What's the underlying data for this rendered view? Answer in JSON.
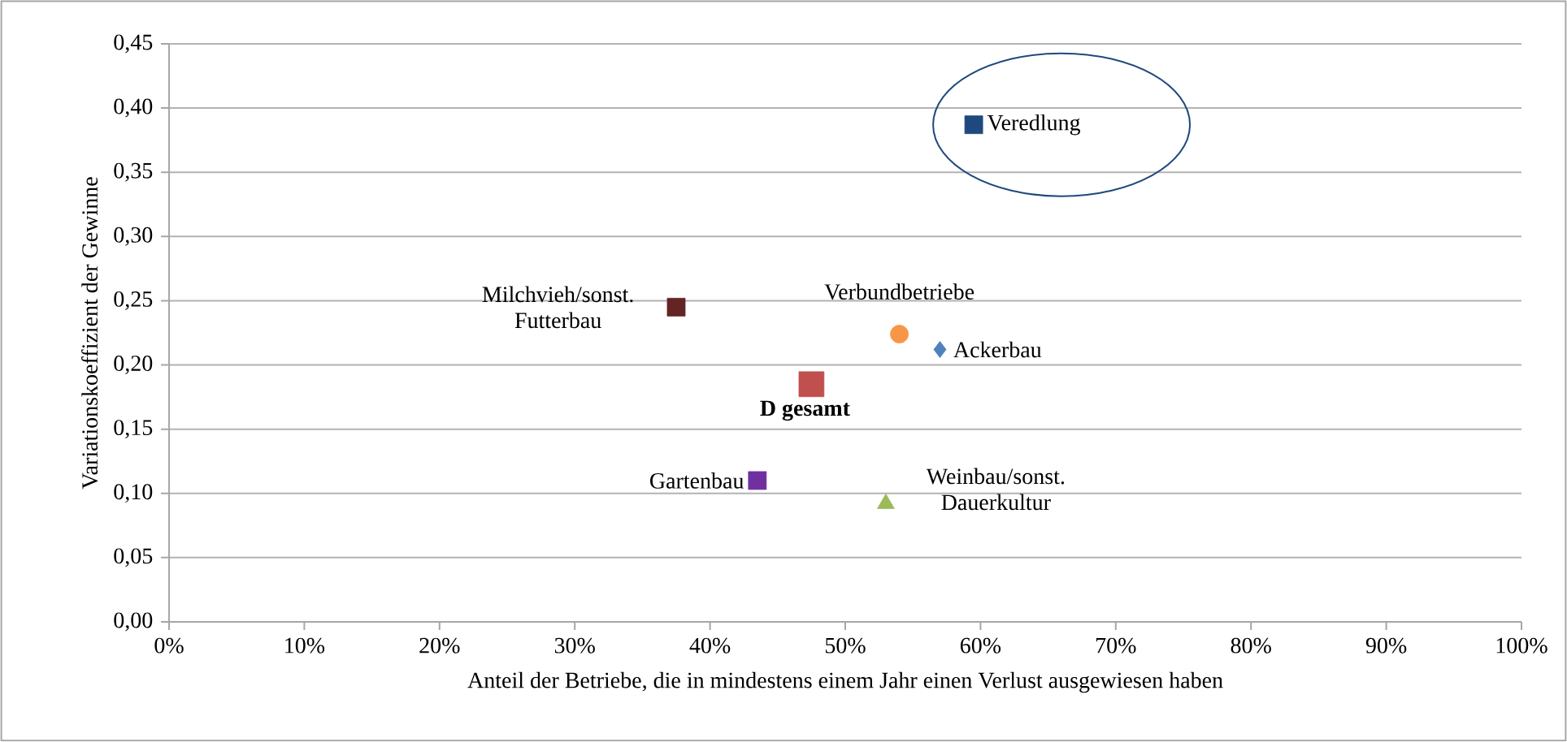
{
  "chart_data": {
    "type": "scatter",
    "xlabel": "Anteil der Betriebe, die in mindestens einem Jahr einen Verlust ausgewiesen haben",
    "ylabel": "Variationskoeffizient der Gewinne",
    "xlim": [
      0,
      100
    ],
    "xticks": [
      {
        "value": 0,
        "label": "0%"
      },
      {
        "value": 10,
        "label": "10%"
      },
      {
        "value": 20,
        "label": "20%"
      },
      {
        "value": 30,
        "label": "30%"
      },
      {
        "value": 40,
        "label": "40%"
      },
      {
        "value": 50,
        "label": "50%"
      },
      {
        "value": 60,
        "label": "60%"
      },
      {
        "value": 70,
        "label": "70%"
      },
      {
        "value": 80,
        "label": "80%"
      },
      {
        "value": 90,
        "label": "90%"
      },
      {
        "value": 100,
        "label": "100%"
      }
    ],
    "ylim": [
      0,
      0.45
    ],
    "yticks": [
      {
        "value": 0,
        "label": "0,00"
      },
      {
        "value": 0.05,
        "label": "0,05"
      },
      {
        "value": 0.1,
        "label": "0,10"
      },
      {
        "value": 0.15,
        "label": "0,15"
      },
      {
        "value": 0.2,
        "label": "0,20"
      },
      {
        "value": 0.25,
        "label": "0,25"
      },
      {
        "value": 0.3,
        "label": "0,30"
      },
      {
        "value": 0.35,
        "label": "0,35"
      },
      {
        "value": 0.4,
        "label": "0,40"
      },
      {
        "value": 0.45,
        "label": "0,45"
      }
    ],
    "grid": "y",
    "series": [
      {
        "name": "Veredlung",
        "color": "#1f497d",
        "marker": "square",
        "x": [
          59.5
        ],
        "values": [
          0.387
        ]
      },
      {
        "name": "Milchvieh/sonst. Futterbau",
        "color": "#632523",
        "marker": "square",
        "x": [
          37.5
        ],
        "values": [
          0.245
        ]
      },
      {
        "name": "Verbundbetriebe",
        "color": "#f79646",
        "marker": "circle",
        "x": [
          54
        ],
        "values": [
          0.224
        ]
      },
      {
        "name": "Ackerbau",
        "color": "#4f81bd",
        "marker": "diamond",
        "x": [
          57
        ],
        "values": [
          0.212
        ]
      },
      {
        "name": "**D gesamt**",
        "color": "#c0504d",
        "marker": "square",
        "x": [
          47.5
        ],
        "values": [
          0.185
        ]
      },
      {
        "name": "Gartenbau",
        "color": "#7030a0",
        "marker": "square",
        "x": [
          43.5
        ],
        "values": [
          0.11
        ]
      },
      {
        "name": "Weinbau/sonst. Dauerkultur",
        "color": "#9bbb59",
        "marker": "triangle",
        "x": [
          53
        ],
        "values": [
          0.092
        ]
      }
    ]
  }
}
